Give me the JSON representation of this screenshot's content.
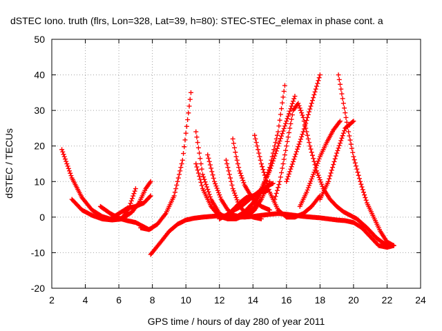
{
  "chart_data": {
    "type": "scatter",
    "title": "dSTEC Iono. truth (flrs, Lon=328, Lat=39, h=80): STEC-STEC_elemax in phase cont. a",
    "xlabel": "GPS time / hours of day 280 of year 2011",
    "ylabel": "dSTEC  / TECUs",
    "xlim": [
      2,
      24
    ],
    "ylim": [
      -20,
      50
    ],
    "xticks": [
      "2",
      "4",
      "6",
      "8",
      "10",
      "12",
      "14",
      "16",
      "18",
      "20",
      "22",
      "24"
    ],
    "yticks": [
      "-20",
      "-10",
      "0",
      "10",
      "20",
      "30",
      "40",
      "50"
    ],
    "grid": true,
    "marker": "plus",
    "color": "#ff0000",
    "series": [
      {
        "x": [
          2.6,
          3.2,
          3.8,
          4.4,
          5.0,
          5.6,
          6.2,
          6.6,
          7.0
        ],
        "y": [
          19,
          11,
          5.5,
          2,
          0.2,
          -0.7,
          -0.3,
          2.5,
          8
        ]
      },
      {
        "x": [
          3.2,
          3.8,
          4.4,
          5.0,
          5.6,
          6.2,
          6.8,
          7.2,
          7.6,
          7.9
        ],
        "y": [
          5,
          2,
          0.5,
          -0.5,
          -0.8,
          -0.5,
          1.5,
          4,
          8,
          10
        ]
      },
      {
        "x": [
          4.9,
          5.5,
          6.0,
          6.5,
          7.0,
          7.4,
          7.8,
          8.0
        ],
        "y": [
          3,
          1,
          -0.3,
          -1,
          -1.5,
          -2.5,
          -3.5,
          -3
        ]
      },
      {
        "x": [
          5.5,
          6.0,
          6.5,
          7.0,
          7.5,
          7.9
        ],
        "y": [
          -0.5,
          1,
          2.5,
          3,
          4,
          6
        ]
      },
      {
        "x": [
          7.9,
          8.5,
          9.0,
          9.5,
          10.0,
          10.5,
          11.0,
          11.5,
          12.0,
          12.5,
          13.0,
          13.5,
          14.0,
          14.5,
          15.0,
          15.5,
          16.0,
          16.5,
          17.0,
          17.5,
          18.0,
          18.5,
          19.0,
          19.5,
          20.0,
          20.5,
          21.0,
          21.5,
          22.0,
          22.4
        ],
        "y": [
          -10.5,
          -7,
          -4,
          -2,
          -0.8,
          -0.3,
          0,
          0.2,
          0.4,
          0.3,
          0.1,
          0,
          0.2,
          0.5,
          0.8,
          1,
          0.8,
          0.5,
          0.2,
          0,
          -0.2,
          -0.5,
          -0.8,
          -1,
          -1.5,
          -3,
          -5.5,
          -8,
          -8.5,
          -8
        ]
      },
      {
        "x": [
          7.3,
          7.8,
          8.3,
          8.8,
          9.3,
          9.8,
          10.3
        ],
        "y": [
          -3,
          -3.5,
          -2,
          1,
          6,
          16,
          35
        ]
      },
      {
        "x": [
          10.6,
          11.0,
          11.5,
          12.0,
          12.5,
          13.0,
          13.5,
          14.0,
          14.5,
          15.0,
          15.5,
          15.9
        ],
        "y": [
          24,
          12,
          5,
          1,
          -0.5,
          -0.5,
          0.5,
          2.5,
          7,
          14,
          24,
          37
        ]
      },
      {
        "x": [
          10.6,
          11.0,
          11.5,
          12.0,
          12.5,
          13.0,
          13.5,
          14.0,
          14.5,
          15.0,
          15.5,
          16.0,
          16.5
        ],
        "y": [
          15,
          8,
          3,
          0.2,
          -0.5,
          0,
          1.5,
          4,
          8,
          13,
          20,
          27,
          34
        ]
      },
      {
        "x": [
          11.3,
          11.7,
          12.1,
          12.5,
          12.9,
          13.3,
          13.7,
          14.1,
          14.5,
          15.0
        ],
        "y": [
          17.5,
          10,
          5,
          2,
          0.5,
          0,
          0.5,
          2,
          5,
          10
        ]
      },
      {
        "x": [
          12.4,
          12.8,
          13.2,
          13.6,
          14.0,
          14.5
        ],
        "y": [
          16,
          8,
          3,
          1,
          0,
          -0.5
        ]
      },
      {
        "x": [
          12.0,
          12.4,
          12.8,
          13.2,
          13.6,
          14.0,
          14.4,
          14.9
        ],
        "y": [
          -0.5,
          0.5,
          2,
          4,
          5.5,
          6,
          7,
          7.5
        ]
      },
      {
        "x": [
          12.8,
          13.0,
          13.2,
          13.5,
          14.0,
          14.5,
          15.0
        ],
        "y": [
          22,
          17,
          13,
          9,
          5,
          3,
          2
        ]
      },
      {
        "x": [
          12.5,
          12.9,
          13.3,
          13.8,
          14.3,
          14.8,
          15.2
        ],
        "y": [
          1,
          2,
          3,
          5,
          7,
          8.5,
          9.5
        ]
      },
      {
        "x": [
          14.1,
          14.5,
          15.0,
          15.5,
          16.0,
          16.5,
          17.0,
          17.5,
          18.0
        ],
        "y": [
          23,
          15,
          7,
          2,
          0,
          0,
          1,
          3,
          6
        ]
      },
      {
        "x": [
          15.3,
          15.6,
          16.0,
          16.4,
          16.7,
          17.0,
          17.4,
          17.8,
          18.2,
          18.6,
          19.0,
          19.4,
          19.8,
          20.2,
          20.8,
          21.4,
          22.0
        ],
        "y": [
          5,
          10,
          20,
          30,
          32,
          28,
          20,
          13,
          8,
          5,
          3,
          1.5,
          0.5,
          -0.5,
          -3,
          -6,
          -8
        ]
      },
      {
        "x": [
          16.0,
          16.5,
          17.0,
          17.5,
          18.0
        ],
        "y": [
          10,
          17,
          24,
          32,
          40
        ]
      },
      {
        "x": [
          16.8,
          17.2,
          17.6,
          18.0,
          18.4,
          18.8,
          19.2
        ],
        "y": [
          3,
          7,
          12,
          17,
          21,
          24.5,
          27
        ]
      },
      {
        "x": [
          18.0,
          18.5,
          19.0,
          19.5,
          20.0
        ],
        "y": [
          5,
          10,
          18,
          25,
          27
        ]
      },
      {
        "x": [
          19.1,
          19.4,
          19.7,
          20.0,
          20.4,
          20.8,
          21.2,
          21.6,
          22.0,
          22.4
        ],
        "y": [
          40,
          32,
          24,
          17,
          10,
          4,
          0,
          -4,
          -7,
          -8
        ]
      }
    ]
  }
}
